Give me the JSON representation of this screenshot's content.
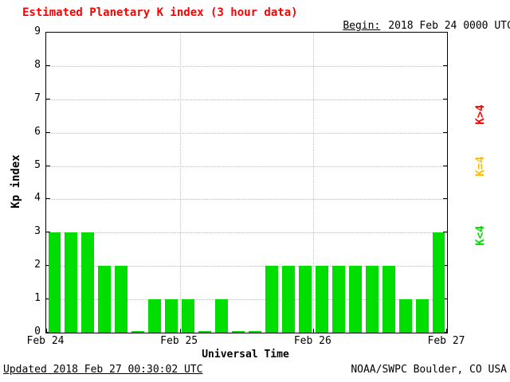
{
  "header": {
    "title": "Estimated Planetary K index (3 hour data)",
    "begin_label": "Begin:",
    "begin_value": "2018 Feb 24 0000 UTC"
  },
  "footer": {
    "updated": "Updated 2018 Feb 27 00:30:02 UTC",
    "source": "NOAA/SWPC Boulder, CO USA"
  },
  "legend": [
    {
      "label": "K>4",
      "color": "#ff0000"
    },
    {
      "label": "K=4",
      "color": "#ffbf00"
    },
    {
      "label": "K<4",
      "color": "#00dd00"
    }
  ],
  "chart_data": {
    "type": "bar",
    "title": "Estimated Planetary K index (3 hour data)",
    "xlabel": "Universal Time",
    "ylabel": "Kp index",
    "ylim": [
      0,
      9
    ],
    "y_ticks": [
      0,
      1,
      2,
      3,
      4,
      5,
      6,
      7,
      8,
      9
    ],
    "x_tick_labels": [
      "Feb 24",
      "Feb 25",
      "Feb 26",
      "Feb 27"
    ],
    "bin_hours": 3,
    "bar_color": "#00dd00",
    "grid": true,
    "values": [
      3,
      3,
      3,
      2,
      2,
      0,
      1,
      1,
      1,
      0,
      1,
      0,
      0,
      2,
      2,
      2,
      2,
      2,
      2,
      2,
      2,
      1,
      1,
      3
    ]
  }
}
